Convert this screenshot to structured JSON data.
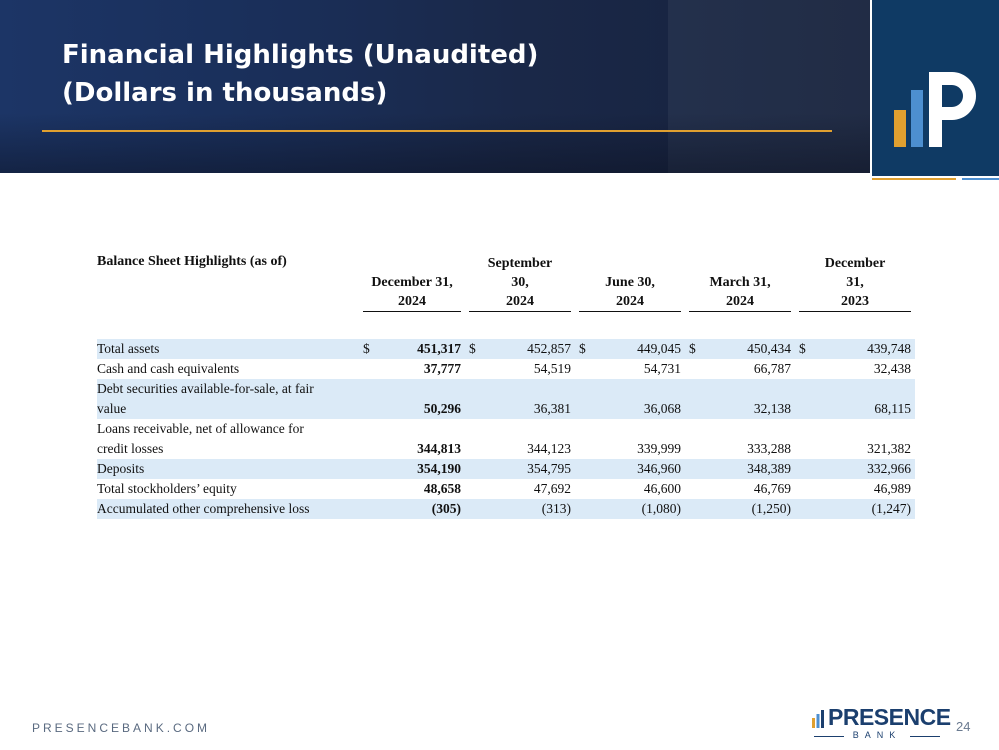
{
  "slide": {
    "title_line1": "Financial Highlights (Unaudited)",
    "title_line2": "(Dollars in thousands)",
    "footer_url": "PRESENCEBANK.COM",
    "page_number": "24"
  },
  "logo": {
    "brand": "PRESENCE",
    "sub": "BANK",
    "colors": {
      "gold": "#e0a030",
      "blue": "#4d8fd0",
      "navy": "#0f3a64",
      "white": "#ffffff"
    }
  },
  "table": {
    "section_title": "Balance Sheet Highlights (as of)",
    "columns": [
      {
        "line1": "",
        "line2": "December 31,",
        "line3": "2024"
      },
      {
        "line1": "September",
        "line2": "30,",
        "line3": "2024"
      },
      {
        "line1": "",
        "line2": "June 30,",
        "line3": "2024"
      },
      {
        "line1": "",
        "line2": "March 31,",
        "line3": "2024"
      },
      {
        "line1": "December",
        "line2": "31,",
        "line3": "2023"
      }
    ],
    "currency_symbol": "$",
    "rows": [
      {
        "label": "Total assets",
        "values": [
          "451,317",
          "452,857",
          "449,045",
          "450,434",
          "439,748"
        ]
      },
      {
        "label": "Cash and cash equivalents",
        "values": [
          "37,777",
          "54,519",
          "54,731",
          "66,787",
          "32,438"
        ]
      },
      {
        "label_line1": "Debt securities available-for-sale, at fair",
        "label_line2": "value",
        "values": [
          "50,296",
          "36,381",
          "36,068",
          "32,138",
          "68,115"
        ]
      },
      {
        "label_line1": "Loans receivable, net of allowance for",
        "label_line2": "credit losses",
        "values": [
          "344,813",
          "344,123",
          "339,999",
          "333,288",
          "321,382"
        ]
      },
      {
        "label": "Deposits",
        "values": [
          "354,190",
          "354,795",
          "346,960",
          "348,389",
          "332,966"
        ]
      },
      {
        "label": "Total stockholders’ equity",
        "values": [
          "48,658",
          "47,692",
          "46,600",
          "46,769",
          "46,989"
        ]
      },
      {
        "label": "Accumulated other comprehensive loss",
        "values": [
          "(305)",
          "(313)",
          "(1,080)",
          "(1,250)",
          "(1,247)"
        ]
      }
    ]
  }
}
